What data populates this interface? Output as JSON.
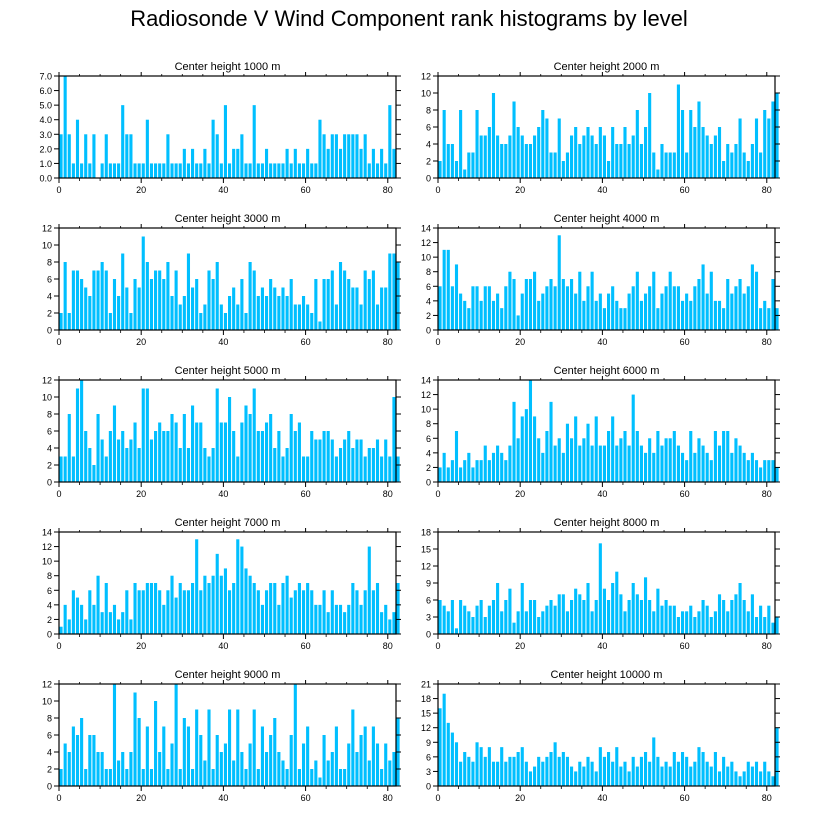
{
  "title": "Radiosonde V Wind Component rank histograms by level",
  "bar_color": "#00bfff",
  "chart_data": [
    {
      "type": "bar",
      "title": "Center height 1000 m",
      "xlim": [
        0,
        82
      ],
      "ylim": [
        0,
        7
      ],
      "yticks": [
        "0.0",
        "1.0",
        "2.0",
        "3.0",
        "4.0",
        "5.0",
        "6.0",
        "7.0"
      ],
      "xticks": [
        "0",
        "20",
        "40",
        "60",
        "80"
      ],
      "values": [
        3,
        7,
        3,
        1,
        4,
        1,
        3,
        1,
        3,
        0,
        1,
        3,
        1,
        1,
        1,
        5,
        3,
        3,
        1,
        1,
        1,
        4,
        1,
        1,
        1,
        1,
        3,
        1,
        1,
        1,
        2,
        1,
        2,
        1,
        1,
        2,
        1,
        4,
        3,
        1,
        5,
        1,
        2,
        2,
        3,
        1,
        1,
        5,
        1,
        1,
        2,
        1,
        1,
        1,
        1,
        2,
        1,
        2,
        1,
        1,
        2,
        1,
        1,
        4,
        3,
        2,
        3,
        3,
        2,
        3,
        3,
        3,
        3,
        2,
        3,
        1,
        2,
        1,
        2,
        1,
        5,
        2
      ]
    },
    {
      "type": "bar",
      "title": "Center height 2000 m",
      "xlim": [
        0,
        82
      ],
      "ylim": [
        0,
        12
      ],
      "yticks": [
        "0",
        "2",
        "4",
        "6",
        "8",
        "10",
        "12"
      ],
      "xticks": [
        "0",
        "20",
        "40",
        "60",
        "80"
      ],
      "values": [
        2,
        8,
        4,
        4,
        2,
        8,
        1,
        3,
        3,
        8,
        5,
        5,
        6,
        10,
        5,
        4,
        4,
        5,
        9,
        6,
        5,
        4,
        4,
        5,
        6,
        8,
        7,
        3,
        3,
        7,
        2,
        3,
        5,
        6,
        4,
        5,
        6,
        5,
        4,
        6,
        5,
        2,
        6,
        4,
        4,
        6,
        4,
        5,
        8,
        4,
        6,
        10,
        3,
        1,
        4,
        3,
        3,
        3,
        11,
        8,
        3,
        8,
        6,
        9,
        6,
        5,
        4,
        5,
        6,
        2,
        4,
        3,
        4,
        7,
        3,
        2,
        4,
        7,
        3,
        8,
        7,
        9,
        10
      ]
    },
    {
      "type": "bar",
      "title": "Center height 3000 m",
      "xlim": [
        0,
        82
      ],
      "ylim": [
        0,
        12
      ],
      "yticks": [
        "0",
        "2",
        "4",
        "6",
        "8",
        "10",
        "12"
      ],
      "xticks": [
        "0",
        "20",
        "40",
        "60",
        "80"
      ],
      "values": [
        2,
        8,
        2,
        7,
        7,
        6,
        5,
        4,
        7,
        7,
        8,
        7,
        2,
        6,
        4,
        9,
        5,
        2,
        6,
        5,
        11,
        8,
        6,
        7,
        7,
        6,
        8,
        4,
        7,
        3,
        4,
        9,
        5,
        6,
        2,
        3,
        7,
        6,
        8,
        3,
        2,
        4,
        5,
        3,
        6,
        2,
        8,
        7,
        4,
        5,
        4,
        6,
        5,
        4,
        5,
        4,
        6,
        3,
        3,
        4,
        3,
        2,
        6,
        1,
        6,
        6,
        7,
        3,
        8,
        7,
        6,
        5,
        5,
        3,
        7,
        6,
        7,
        3,
        5,
        5,
        9,
        9,
        8
      ]
    },
    {
      "type": "bar",
      "title": "Center height 4000 m",
      "xlim": [
        0,
        82
      ],
      "ylim": [
        0,
        14
      ],
      "yticks": [
        "0",
        "2",
        "4",
        "6",
        "8",
        "10",
        "12",
        "14"
      ],
      "xticks": [
        "0",
        "20",
        "40",
        "60",
        "80"
      ],
      "values": [
        6,
        11,
        11,
        6,
        9,
        5,
        4,
        3,
        6,
        6,
        4,
        6,
        6,
        4,
        5,
        3,
        6,
        8,
        7,
        2,
        5,
        7,
        7,
        8,
        4,
        5,
        6,
        7,
        6,
        13,
        7,
        6,
        7,
        5,
        8,
        4,
        6,
        8,
        4,
        5,
        3,
        5,
        6,
        4,
        3,
        3,
        5,
        6,
        8,
        4,
        5,
        6,
        8,
        3,
        5,
        6,
        8,
        6,
        6,
        4,
        5,
        4,
        6,
        7,
        9,
        5,
        8,
        4,
        4,
        3,
        7,
        5,
        6,
        7,
        5,
        6,
        9,
        8,
        3,
        4,
        3,
        7,
        3
      ]
    },
    {
      "type": "bar",
      "title": "Center height 5000 m",
      "xlim": [
        0,
        82
      ],
      "ylim": [
        0,
        12
      ],
      "yticks": [
        "0",
        "2",
        "4",
        "6",
        "8",
        "10",
        "12"
      ],
      "xticks": [
        "0",
        "20",
        "40",
        "60",
        "80"
      ],
      "values": [
        3,
        3,
        8,
        3,
        11,
        12,
        6,
        4,
        2,
        8,
        5,
        3,
        6,
        9,
        5,
        6,
        4,
        5,
        7,
        4,
        11,
        11,
        5,
        6,
        7,
        6,
        6,
        8,
        7,
        4,
        8,
        4,
        9,
        7,
        7,
        4,
        3,
        4,
        11,
        7,
        7,
        10,
        6,
        3,
        7,
        9,
        8,
        11,
        6,
        6,
        7,
        8,
        4,
        6,
        3,
        4,
        8,
        6,
        7,
        3,
        3,
        6,
        5,
        5,
        6,
        6,
        5,
        3,
        4,
        5,
        6,
        4,
        5,
        5,
        3,
        4,
        4,
        5,
        3,
        5,
        3,
        10,
        3
      ]
    },
    {
      "type": "bar",
      "title": "Center height 6000 m",
      "xlim": [
        0,
        82
      ],
      "ylim": [
        0,
        14
      ],
      "yticks": [
        "0",
        "2",
        "4",
        "6",
        "8",
        "10",
        "12",
        "14"
      ],
      "xticks": [
        "0",
        "20",
        "40",
        "60",
        "80"
      ],
      "values": [
        2,
        4,
        2,
        3,
        7,
        2,
        3,
        4,
        2,
        3,
        3,
        5,
        3,
        4,
        5,
        4,
        3,
        5,
        11,
        6,
        9,
        10,
        14,
        9,
        6,
        4,
        7,
        11,
        5,
        6,
        4,
        8,
        6,
        9,
        5,
        6,
        8,
        5,
        9,
        5,
        5,
        7,
        9,
        5,
        6,
        7,
        5,
        12,
        7,
        5,
        4,
        6,
        4,
        7,
        5,
        6,
        6,
        7,
        5,
        4,
        3,
        7,
        4,
        6,
        5,
        4,
        3,
        7,
        5,
        7,
        7,
        4,
        6,
        5,
        4,
        3,
        4,
        3,
        2,
        3,
        3,
        3,
        2
      ]
    },
    {
      "type": "bar",
      "title": "Center height 7000 m",
      "xlim": [
        0,
        82
      ],
      "ylim": [
        0,
        14
      ],
      "yticks": [
        "0",
        "2",
        "4",
        "6",
        "8",
        "10",
        "12",
        "14"
      ],
      "xticks": [
        "0",
        "20",
        "40",
        "60",
        "80"
      ],
      "values": [
        1,
        4,
        2,
        6,
        5,
        4,
        2,
        6,
        4,
        8,
        3,
        7,
        3,
        4,
        2,
        3,
        6,
        2,
        7,
        6,
        6,
        7,
        7,
        7,
        6,
        4,
        6,
        8,
        5,
        7,
        6,
        6,
        7,
        13,
        6,
        8,
        7,
        8,
        11,
        8,
        9,
        6,
        7,
        13,
        12,
        9,
        8,
        7,
        6,
        4,
        6,
        7,
        7,
        4,
        7,
        8,
        5,
        6,
        7,
        6,
        7,
        6,
        4,
        4,
        6,
        3,
        6,
        4,
        4,
        3,
        4,
        7,
        6,
        4,
        6,
        12,
        6,
        7,
        3,
        4,
        2,
        3,
        7
      ]
    },
    {
      "type": "bar",
      "title": "Center height 8000 m",
      "xlim": [
        0,
        82
      ],
      "ylim": [
        0,
        18
      ],
      "yticks": [
        "0",
        "3",
        "6",
        "9",
        "12",
        "15",
        "18"
      ],
      "xticks": [
        "0",
        "20",
        "40",
        "60",
        "80"
      ],
      "values": [
        6,
        5,
        4,
        6,
        1,
        6,
        5,
        4,
        3,
        5,
        6,
        3,
        5,
        6,
        9,
        4,
        6,
        8,
        2,
        4,
        9,
        4,
        6,
        6,
        3,
        4,
        5,
        6,
        5,
        7,
        7,
        4,
        6,
        8,
        7,
        6,
        9,
        4,
        6,
        16,
        8,
        6,
        9,
        11,
        7,
        4,
        6,
        9,
        7,
        6,
        10,
        6,
        4,
        8,
        5,
        6,
        5,
        5,
        3,
        4,
        4,
        5,
        3,
        4,
        6,
        5,
        3,
        4,
        7,
        6,
        4,
        6,
        7,
        9,
        6,
        4,
        7,
        3,
        5,
        3,
        5,
        2,
        3
      ]
    },
    {
      "type": "bar",
      "title": "Center height 9000 m",
      "xlim": [
        0,
        82
      ],
      "ylim": [
        0,
        12
      ],
      "yticks": [
        "0",
        "2",
        "4",
        "6",
        "8",
        "10",
        "12"
      ],
      "xticks": [
        "0",
        "20",
        "40",
        "60",
        "80"
      ],
      "values": [
        2,
        5,
        4,
        7,
        6,
        8,
        2,
        6,
        6,
        4,
        4,
        2,
        2,
        12,
        3,
        4,
        2,
        4,
        11,
        8,
        2,
        7,
        2,
        10,
        4,
        7,
        2,
        5,
        12,
        2,
        8,
        7,
        2,
        9,
        6,
        3,
        9,
        2,
        6,
        4,
        5,
        9,
        3,
        9,
        4,
        2,
        5,
        9,
        2,
        7,
        4,
        6,
        8,
        4,
        3,
        2,
        6,
        12,
        2,
        5,
        7,
        2,
        3,
        1,
        6,
        3,
        4,
        7,
        2,
        2,
        5,
        9,
        4,
        6,
        7,
        3,
        7,
        5,
        2,
        5,
        3,
        4,
        8
      ]
    },
    {
      "type": "bar",
      "title": "Center height 10000 m",
      "xlim": [
        0,
        82
      ],
      "ylim": [
        0,
        21
      ],
      "yticks": [
        "0",
        "3",
        "6",
        "9",
        "12",
        "15",
        "18",
        "21"
      ],
      "xticks": [
        "0",
        "20",
        "40",
        "60",
        "80"
      ],
      "values": [
        16,
        19,
        13,
        11,
        9,
        5,
        7,
        6,
        5,
        9,
        8,
        6,
        8,
        5,
        5,
        8,
        5,
        6,
        6,
        7,
        8,
        5,
        3,
        4,
        6,
        5,
        6,
        7,
        9,
        6,
        7,
        6,
        4,
        3,
        5,
        4,
        6,
        5,
        3,
        8,
        6,
        7,
        5,
        8,
        4,
        5,
        3,
        6,
        4,
        6,
        7,
        5,
        10,
        6,
        4,
        5,
        4,
        7,
        5,
        7,
        6,
        4,
        5,
        8,
        7,
        5,
        4,
        7,
        3,
        6,
        4,
        5,
        3,
        2,
        3,
        5,
        4,
        5,
        3,
        5,
        3,
        2,
        12
      ]
    }
  ]
}
